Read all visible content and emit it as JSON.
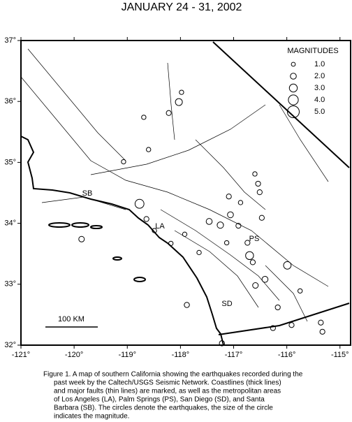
{
  "chart_data": {
    "type": "map",
    "title": "JANUARY 24 - 31, 2002",
    "xlim": [
      -121,
      -114.8
    ],
    "ylim": [
      32,
      37
    ],
    "xticks": [
      {
        "value": -121,
        "label": "-121°"
      },
      {
        "value": -120,
        "label": "-120°"
      },
      {
        "value": -119,
        "label": "-119°"
      },
      {
        "value": -118,
        "label": "-118°"
      },
      {
        "value": -117,
        "label": "-117°"
      },
      {
        "value": -116,
        "label": "-116°"
      },
      {
        "value": -115,
        "label": "-115°"
      }
    ],
    "yticks": [
      {
        "value": 32,
        "label": "32°"
      },
      {
        "value": 33,
        "label": "33°"
      },
      {
        "value": 34,
        "label": "34°"
      },
      {
        "value": 35,
        "label": "35°"
      },
      {
        "value": 36,
        "label": "36°"
      },
      {
        "value": 37,
        "label": "37°"
      }
    ],
    "legend": {
      "title": "MAGNITUDES",
      "magnitudes": [
        {
          "value": 1,
          "label": "1.0"
        },
        {
          "value": 2,
          "label": "2.0"
        },
        {
          "value": 3,
          "label": "3.0"
        },
        {
          "value": 4,
          "label": "4.0"
        },
        {
          "value": 5,
          "label": "5.0"
        }
      ]
    },
    "places": [
      "SB",
      "LA",
      "PS",
      "SD"
    ],
    "scale_label": "100 KM",
    "earthquakes": {
      "lon": [
        -118.03,
        -118.22,
        -118.69,
        -117.98,
        -118.6,
        -119.07,
        -118.77,
        -118.64,
        -119.86,
        -118.49,
        -117.46,
        -117.25,
        -117.06,
        -116.91,
        -116.74,
        -116.7,
        -116.64,
        -116.47,
        -116.54,
        -116.51,
        -117.09,
        -115.99,
        -116.41,
        -116.59,
        -117.88,
        -116.17,
        -115.91,
        -115.36,
        -115.33,
        -116.26,
        -117.22,
        -117.65,
        -118.18,
        -117.92,
        -117.13,
        -115.75,
        -116.87,
        -116.6
      ],
      "lat": [
        35.99,
        35.81,
        35.74,
        36.15,
        35.21,
        35.01,
        34.32,
        34.07,
        33.74,
        33.88,
        34.03,
        33.97,
        34.14,
        33.96,
        33.68,
        33.47,
        33.36,
        34.09,
        34.65,
        34.51,
        34.44,
        33.31,
        33.08,
        32.98,
        32.66,
        32.62,
        32.33,
        32.37,
        32.22,
        32.28,
        32.03,
        33.52,
        33.67,
        33.82,
        33.68,
        32.89,
        34.34,
        34.81
      ],
      "magnitude": [
        2.5,
        1.5,
        1.2,
        1.2,
        1.2,
        1.2,
        3.5,
        1.5,
        1.8,
        1.2,
        2.0,
        2.2,
        2.0,
        1.5,
        1.5,
        3.0,
        1.5,
        1.5,
        1.5,
        1.5,
        1.5,
        2.8,
        2.0,
        1.8,
        1.6,
        1.5,
        1.5,
        1.5,
        1.5,
        1.5,
        1.6,
        1.2,
        1.2,
        1.2,
        1.2,
        1.2,
        1.2,
        1.2
      ]
    },
    "caption": [
      "Figure 1. A map of southern California showing the earthquakes recorded during the",
      "past week by the Caltech/USGS Seismic Network.  Coastlines (thick lines)",
      "and major faults (thin lines) are marked, as well as the metropolitan areas",
      "of Los Angeles (LA), Palm Springs (PS), San Diego (SD), and Santa",
      "Barbara (SB).  The circles denote the earthquakes, the size of the circle",
      "indicates the magnitude."
    ]
  }
}
